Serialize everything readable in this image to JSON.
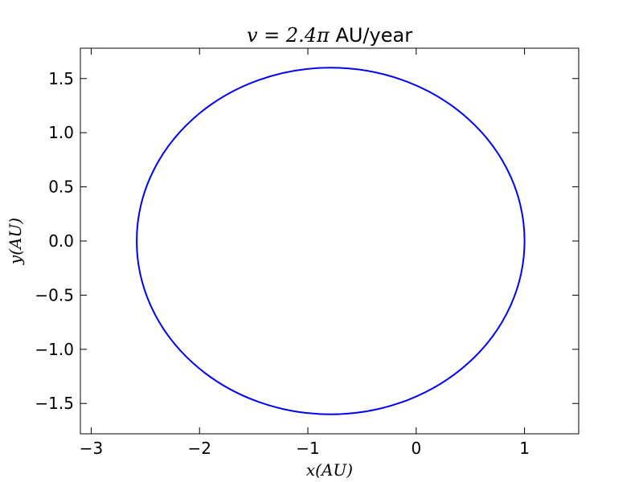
{
  "chart_data": {
    "type": "line",
    "title_math": "v = 2.4π",
    "title_text": " AU/year",
    "xlabel": "x(AU)",
    "ylabel": "y(AU)",
    "xlim": [
      -3.1,
      1.5
    ],
    "ylim": [
      -1.78,
      1.78
    ],
    "xticks": [
      -3,
      -2,
      -1,
      0,
      1
    ],
    "xtick_labels": [
      "−3",
      "−2",
      "−1",
      "0",
      "1"
    ],
    "yticks": [
      1.5,
      1.0,
      0.5,
      0.0,
      -0.5,
      -1.0,
      -1.5
    ],
    "ytick_labels": [
      "1.5",
      "1.0",
      "0.5",
      "0.0",
      "−0.5",
      "−1.0",
      "−1.5"
    ],
    "grid": false,
    "series": [
      {
        "shape": "ellipse",
        "center": [
          -0.79,
          0.0
        ],
        "semi_axis_x": 1.79,
        "semi_axis_y": 1.6,
        "color": "#0000ff"
      }
    ]
  }
}
